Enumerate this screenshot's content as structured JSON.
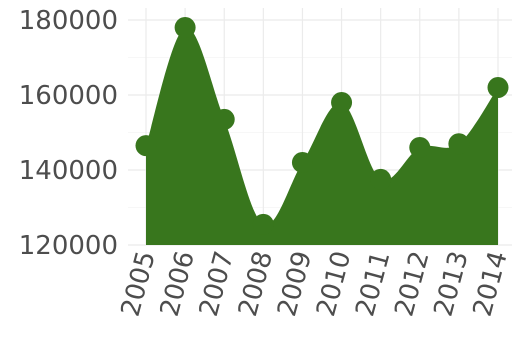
{
  "chart_data": {
    "type": "area",
    "x": [
      "2005",
      "2006",
      "2007",
      "2008",
      "2009",
      "2010",
      "2011",
      "2012",
      "2013",
      "2014"
    ],
    "series": [
      {
        "values": [
          146500,
          178000,
          153500,
          125500,
          142000,
          158000,
          137500,
          146000,
          147000,
          162000
        ]
      }
    ],
    "yticks": [
      "120000",
      "140000",
      "160000",
      "180000"
    ],
    "ylim": [
      120000,
      180000
    ],
    "title": "",
    "xlabel": "",
    "ylabel": "",
    "grid": true,
    "legend": "none",
    "colors": {
      "fill": "#38761d",
      "point": "#38761d",
      "grid": "#ebebeb",
      "text": "#4d4d4d"
    }
  }
}
